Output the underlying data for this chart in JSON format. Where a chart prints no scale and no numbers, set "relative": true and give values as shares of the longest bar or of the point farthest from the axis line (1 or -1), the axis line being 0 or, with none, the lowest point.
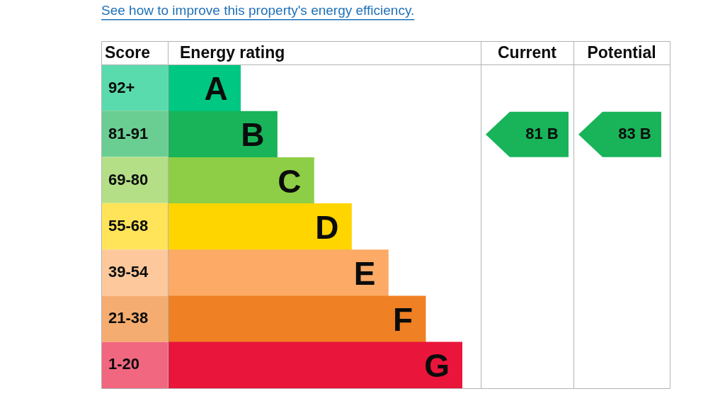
{
  "chart_data": {
    "type": "bar",
    "orientation": "horizontal",
    "relative": true,
    "categories": [
      "A",
      "B",
      "C",
      "D",
      "E",
      "F",
      "G"
    ],
    "values": [
      0.245,
      0.37,
      0.495,
      0.623,
      0.748,
      0.875,
      1
    ],
    "colors": [
      "#00c781",
      "#19b459",
      "#8dce46",
      "#ffd500",
      "#fcaa65",
      "#ef8023",
      "#e9153b"
    ],
    "annotations": [
      "See how to improve this property's energy efficiency.",
      "Score",
      "Energy rating",
      "Current",
      "Potential",
      "92+",
      "81-91",
      "69-80",
      "55-68",
      "39-54",
      "21-38",
      "1-20",
      "81 B",
      "83 B"
    ],
    "legend": false
  }
}
